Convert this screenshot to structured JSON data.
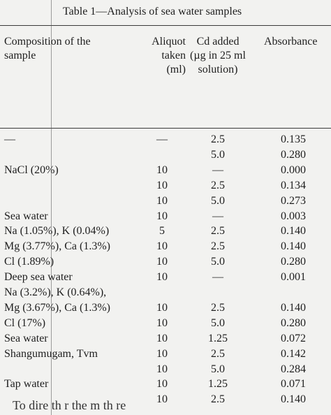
{
  "table": {
    "caption": "Table 1—Analysis of sea water samples",
    "headers": {
      "col1": [
        "Composition of the",
        "sample"
      ],
      "col2": [
        "Aliquot",
        "taken",
        "(ml)"
      ],
      "col3": [
        "Cd added",
        "(µg in 25 ml",
        "solution)"
      ],
      "col4": [
        "Absorbance"
      ]
    },
    "rows": [
      {
        "c1": "—",
        "c2": "—",
        "c3": "2.5",
        "c4": "0.135"
      },
      {
        "c1": "",
        "c2": "",
        "c3": "5.0",
        "c4": "0.280"
      },
      {
        "c1": "NaCl (20%)",
        "c2": "10",
        "c3": "—",
        "c4": "0.000"
      },
      {
        "c1": "",
        "c2": "10",
        "c3": "2.5",
        "c4": "0.134"
      },
      {
        "c1": "",
        "c2": "10",
        "c3": "5.0",
        "c4": "0.273"
      },
      {
        "c1": "Sea water",
        "c2": "10",
        "c3": "—",
        "c4": "0.003"
      },
      {
        "c1": "Na (1.05%), K (0.04%)",
        "c2": "5",
        "c3": "2.5",
        "c4": "0.140"
      },
      {
        "c1": "Mg (3.77%), Ca (1.3%)",
        "c2": "10",
        "c3": "2.5",
        "c4": "0.140"
      },
      {
        "c1": "Cl (1.89%)",
        "c2": "10",
        "c3": "5.0",
        "c4": "0.280"
      },
      {
        "c1": "Deep sea water",
        "c2": "10",
        "c3": "—",
        "c4": "0.001"
      },
      {
        "c1": "Na (3.2%), K (0.64%),",
        "c2": "",
        "c3": "",
        "c4": ""
      },
      {
        "c1": "Mg (3.67%), Ca (1.3%)",
        "c2": "10",
        "c3": "2.5",
        "c4": "0.140"
      },
      {
        "c1": "Cl (17%)",
        "c2": "10",
        "c3": "5.0",
        "c4": "0.280"
      },
      {
        "c1": "Sea water",
        "c2": "10",
        "c3": "1.25",
        "c4": "0.072"
      },
      {
        "c1": "Shangumugam, Tvm",
        "c2": "10",
        "c3": "2.5",
        "c4": "0.142"
      },
      {
        "c1": "",
        "c2": "10",
        "c3": "5.0",
        "c4": "0.284"
      },
      {
        "c1": "Tap water",
        "c2": "10",
        "c3": "1.25",
        "c4": "0.071"
      },
      {
        "c1": "",
        "c2": "10",
        "c3": "2.5",
        "c4": "0.140"
      }
    ]
  },
  "body_text": "To  dire  th  r  the m th   re"
}
